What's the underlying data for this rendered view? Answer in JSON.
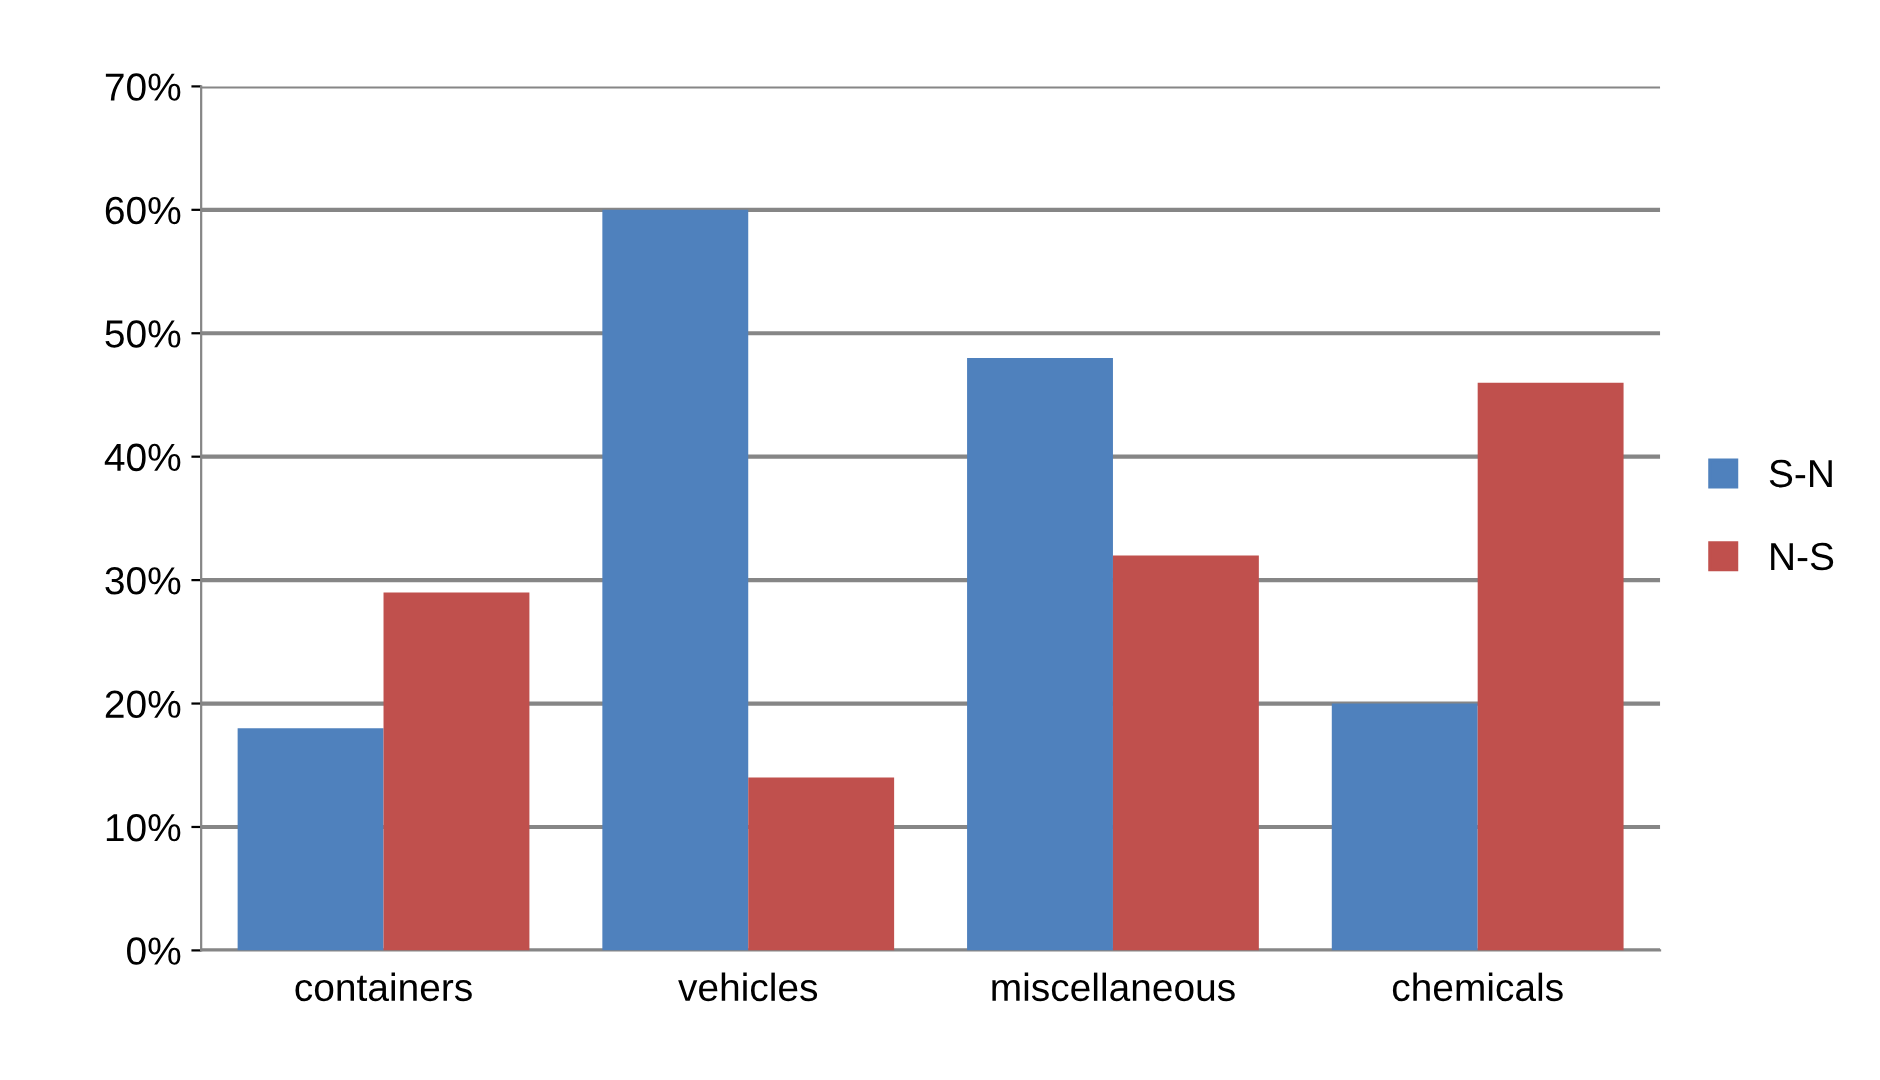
{
  "chart_data": {
    "type": "bar",
    "categories": [
      "containers",
      "vehicles",
      "miscellaneous",
      "chemicals"
    ],
    "series": [
      {
        "name": "S-N",
        "color": "#4f81bd",
        "values": [
          18,
          60,
          48,
          20
        ]
      },
      {
        "name": "N-S",
        "color": "#c0504d",
        "values": [
          29,
          14,
          32,
          46
        ]
      }
    ],
    "ylim": [
      0,
      70
    ],
    "yticks": [
      {
        "value": 0,
        "label": "0%"
      },
      {
        "value": 10,
        "label": "10%"
      },
      {
        "value": 20,
        "label": "20%"
      },
      {
        "value": 30,
        "label": "30%"
      },
      {
        "value": 40,
        "label": "40%"
      },
      {
        "value": 50,
        "label": "50%"
      },
      {
        "value": 60,
        "label": "60%"
      },
      {
        "value": 70,
        "label": "70%"
      }
    ],
    "grid": "y",
    "legend": "right"
  }
}
